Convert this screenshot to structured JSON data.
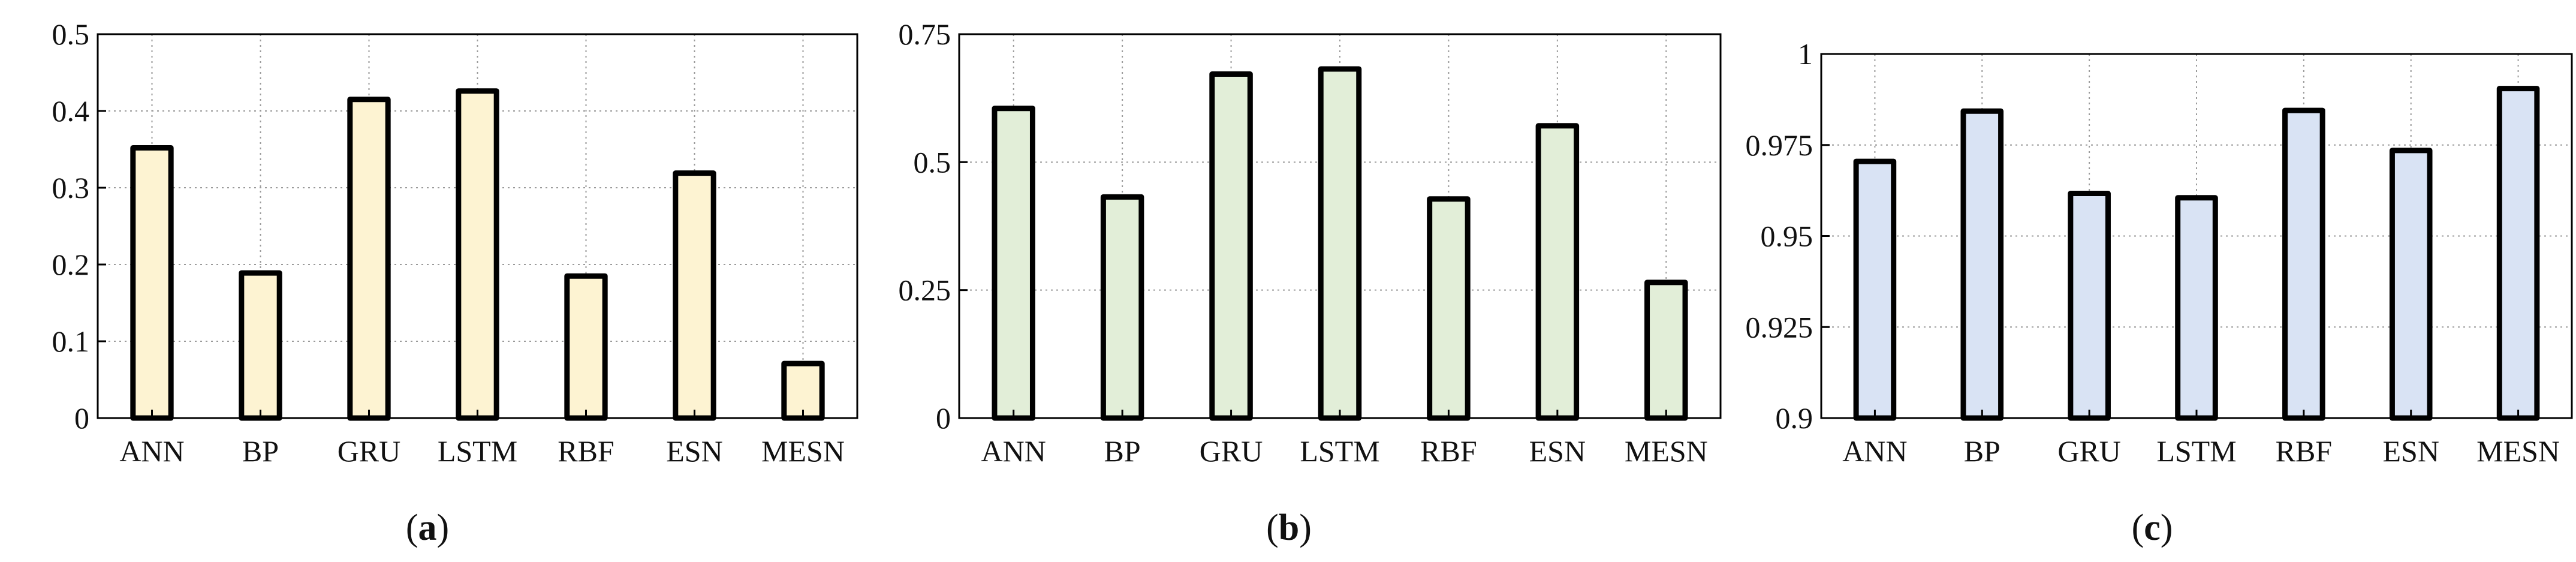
{
  "chart_data": [
    {
      "type": "bar",
      "panel_label": "a",
      "categories": [
        "ANN",
        "BP",
        "GRU",
        "LSTM",
        "RBF",
        "ESN",
        "MESN"
      ],
      "values": [
        0.352,
        0.189,
        0.415,
        0.426,
        0.185,
        0.319,
        0.071
      ],
      "ylim": [
        0,
        0.5
      ],
      "yticks": [
        0,
        0.1,
        0.2,
        0.3,
        0.4,
        0.5
      ],
      "ytick_labels": [
        "0",
        "0.1",
        "0.2",
        "0.3",
        "0.4",
        "0.5"
      ],
      "y_axis_side": "left",
      "grid": true,
      "bar_color": "#fdf3d2",
      "edge_color": "#000000"
    },
    {
      "type": "bar",
      "panel_label": "b",
      "categories": [
        "ANN",
        "BP",
        "GRU",
        "LSTM",
        "RBF",
        "ESN",
        "MESN"
      ],
      "values": [
        0.605,
        0.432,
        0.672,
        0.682,
        0.428,
        0.571,
        0.265
      ],
      "ylim": [
        0,
        0.75
      ],
      "yticks": [
        0,
        0.25,
        0.5,
        0.75
      ],
      "ytick_labels": [
        "0",
        "0.25",
        "0.5",
        "0.75"
      ],
      "y_axis_side": "left",
      "grid": true,
      "bar_color": "#e2eed8",
      "edge_color": "#000000"
    },
    {
      "type": "bar",
      "panel_label": "c",
      "categories": [
        "ANN",
        "BP",
        "GRU",
        "LSTM",
        "RBF",
        "ESN",
        "MESN"
      ],
      "values": [
        0.9705,
        0.9843,
        0.9617,
        0.9605,
        0.9845,
        0.9735,
        0.9905
      ],
      "ylim": [
        0.9,
        1
      ],
      "yticks": [
        0.9,
        0.925,
        0.95,
        0.975,
        1
      ],
      "ytick_labels": [
        "0.9",
        "0.925",
        "0.95",
        "0.975",
        "1"
      ],
      "y_axis_side": "left",
      "grid": true,
      "bar_color": "#d9e3f4",
      "edge_color": "#000000"
    }
  ],
  "captions": [
    {
      "open": "(",
      "letter": "a",
      "close": ")"
    },
    {
      "open": "(",
      "letter": "b",
      "close": ")"
    },
    {
      "open": "(",
      "letter": "c",
      "close": ")"
    }
  ]
}
